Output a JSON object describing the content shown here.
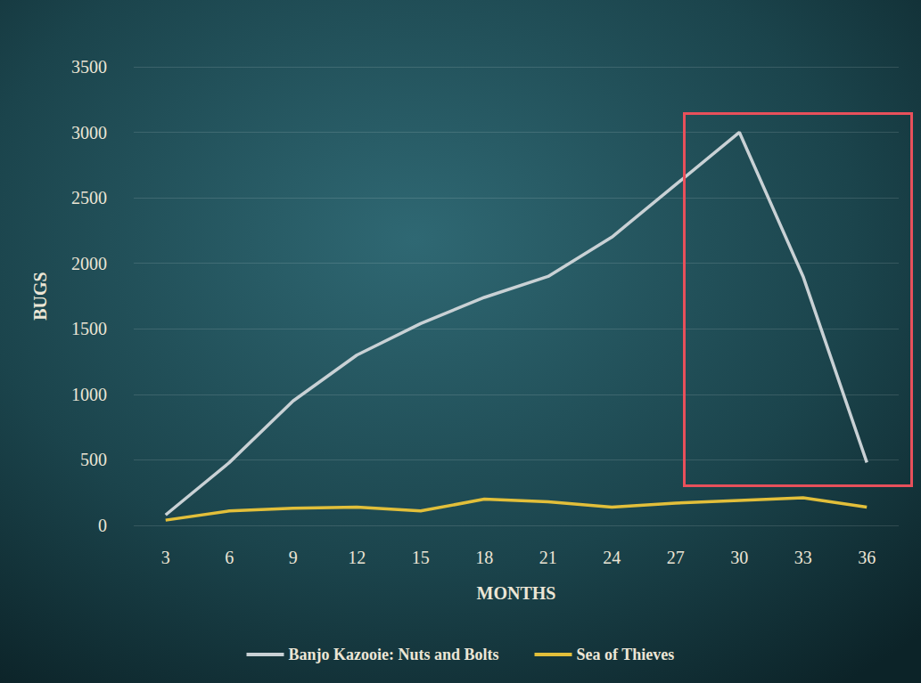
{
  "chart_data": {
    "type": "line",
    "x_label": "MONTHS",
    "y_label": "BUGS",
    "categories": [
      "3",
      "6",
      "9",
      "12",
      "15",
      "18",
      "21",
      "24",
      "27",
      "30",
      "33",
      "36"
    ],
    "series": [
      {
        "name": "Banjo Kazooie: Nuts and Bolts",
        "color": "#c9d1d5",
        "values": [
          80,
          480,
          950,
          1300,
          1540,
          1740,
          1900,
          2200,
          2600,
          3000,
          1900,
          480
        ]
      },
      {
        "name": "Sea of Thieves",
        "color": "#e2bf3a",
        "values": [
          40,
          110,
          130,
          140,
          110,
          200,
          180,
          140,
          170,
          190,
          210,
          140
        ]
      }
    ],
    "ylim": [
      0,
      3500
    ],
    "yticks": [
      0,
      500,
      1000,
      1500,
      2000,
      2500,
      3000,
      3500
    ],
    "grid": true,
    "legend": "bottom"
  }
}
